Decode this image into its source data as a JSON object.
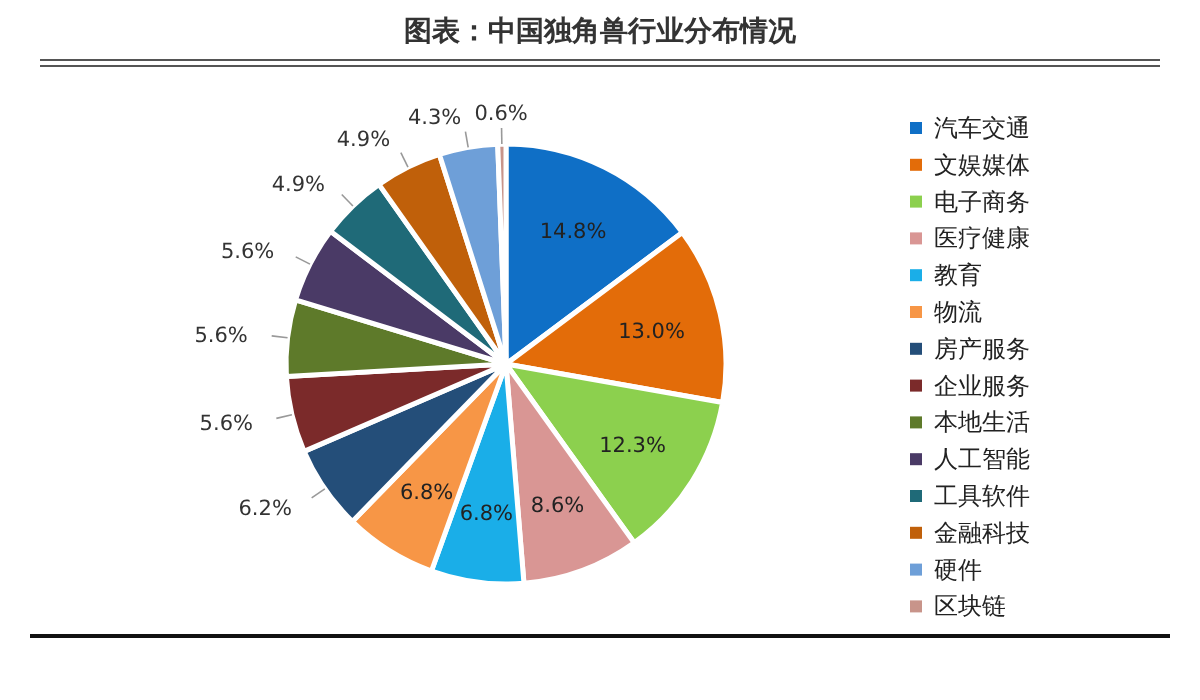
{
  "chart_data": {
    "type": "pie",
    "title": "图表：中国独角兽行业分布情况",
    "categories": [
      "汽车交通",
      "文娱媒体",
      "电子商务",
      "医疗健康",
      "教育",
      "物流",
      "房产服务",
      "企业服务",
      "本地生活",
      "人工智能",
      "工具软件",
      "金融科技",
      "硬件",
      "区块链"
    ],
    "values": [
      14.8,
      13.0,
      12.3,
      8.6,
      6.8,
      6.8,
      6.2,
      5.6,
      5.6,
      5.6,
      4.9,
      4.9,
      4.3,
      0.6
    ],
    "value_labels": [
      "14.8%",
      "13.0%",
      "12.3%",
      "8.6%",
      "6.8%",
      "6.8%",
      "6.2%",
      "5.6%",
      "5.6%",
      "5.6%",
      "4.9%",
      "4.9%",
      "4.3%",
      "0.6%"
    ],
    "colors": [
      "#0f6fc6",
      "#e36c09",
      "#8cd04e",
      "#d99694",
      "#1aaee8",
      "#f79646",
      "#244e79",
      "#7b2a2a",
      "#5e7a2a",
      "#4a3a66",
      "#1f6a78",
      "#c0600a",
      "#6e9fd8",
      "#c8948a"
    ],
    "legend": "right"
  }
}
